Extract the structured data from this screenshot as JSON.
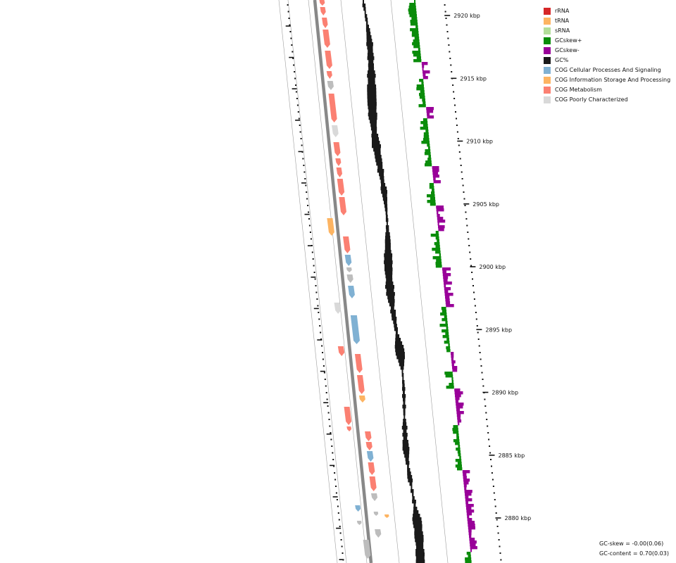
{
  "legend": {
    "items": [
      {
        "label": "rRNA",
        "color": "#d62728"
      },
      {
        "label": "tRNA",
        "color": "#fdb462"
      },
      {
        "label": "sRNA",
        "color": "#b3de9a"
      },
      {
        "label": "GCskew+",
        "color": "#0a8c0a"
      },
      {
        "label": "GCskew-",
        "color": "#990099"
      },
      {
        "label": "GC%",
        "color": "#1a1a1a"
      },
      {
        "label": "COG Cellular Processes And Signaling",
        "color": "#80b1d3"
      },
      {
        "label": "COG Information Storage And Processing",
        "color": "#fdb462"
      },
      {
        "label": "COG Metabolism",
        "color": "#fb8072"
      },
      {
        "label": "COG Poorly Characterized",
        "color": "#d9d9d9"
      }
    ]
  },
  "stats": {
    "gc_skew": "GC-skew = -0.00(0.06)",
    "gc_content": "GC-content = 0.70(0.03)"
  },
  "axis": {
    "unit": "kbp",
    "labels": [
      "2920 kbp",
      "2915 kbp",
      "2910 kbp",
      "2905 kbp",
      "2900 kbp",
      "2895 kbp",
      "2890 kbp",
      "2885 kbp",
      "2880 kbp"
    ],
    "ticks_kbp": [
      2920,
      2915,
      2910,
      2905,
      2900,
      2895,
      2890,
      2885,
      2880
    ]
  },
  "colors": {
    "metabolism": "#fb8072",
    "cellular": "#80b1d3",
    "information": "#fdb462",
    "poor": "#d9d9d9",
    "unclassified": "#bdbdbd",
    "skew_pos": "#0a8c0a",
    "skew_neg": "#990099",
    "gc": "#1a1a1a",
    "backbone": "#888888",
    "guide": "#9e9e9e",
    "tick": "#111111"
  }
}
